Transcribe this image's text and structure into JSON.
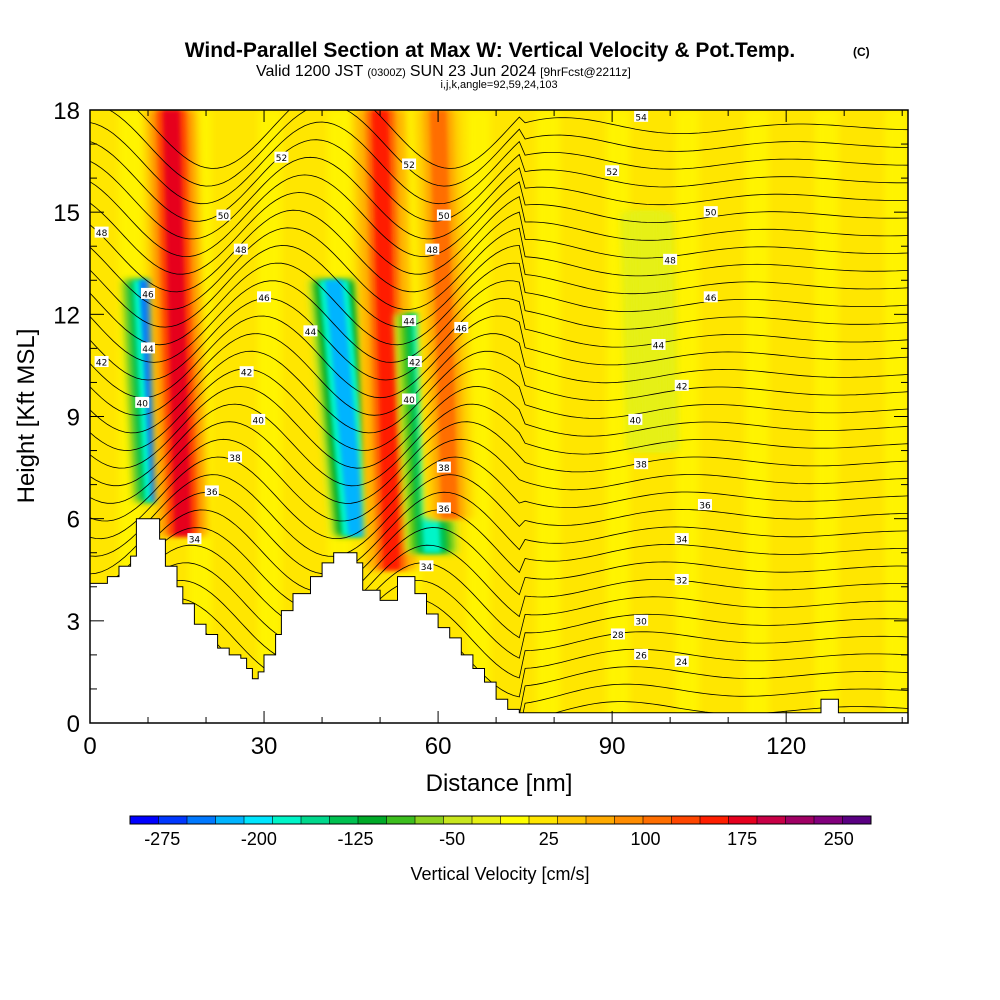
{
  "header": {
    "title": "Wind-Parallel Section at Max W: Vertical Velocity & Pot.Temp.",
    "title_mark": "(C)",
    "valid_prefix": "Valid 1200 JST",
    "valid_utc": "(0300Z)",
    "valid_date": "SUN 23 Jun 2024",
    "forecast": "[9hrFcst@2211z]",
    "section_params": "i,j,k,angle=92,59,24,103"
  },
  "chart_data": {
    "type": "heatmap",
    "xlabel": "Distance [nm]",
    "ylabel": "Height [Kft MSL]",
    "xlim": [
      0,
      141
    ],
    "ylim": [
      0,
      18
    ],
    "x_ticks": [
      0,
      30,
      60,
      90,
      120
    ],
    "y_ticks": [
      0,
      3,
      6,
      9,
      12,
      15,
      18
    ],
    "colorbar": {
      "label": "Vertical Velocity [cm/s]",
      "range": [
        -300,
        275
      ],
      "tick_values": [
        -275,
        -200,
        -125,
        -50,
        25,
        100,
        175,
        250
      ],
      "tick_labels": [
        "-275",
        "-200",
        "-125",
        "-50",
        "25",
        "100",
        "175",
        "250"
      ],
      "colors": [
        "#0000ff",
        "#0037ff",
        "#0078ff",
        "#00b4ff",
        "#00e6ff",
        "#00f5c8",
        "#00d88c",
        "#00c050",
        "#00aa28",
        "#3cbe1e",
        "#8cd21e",
        "#c8e61e",
        "#e6f014",
        "#ffff00",
        "#ffe600",
        "#ffc800",
        "#ffaa00",
        "#ff8c00",
        "#ff6e00",
        "#ff4600",
        "#ff1e00",
        "#e6001e",
        "#c80046",
        "#a00064",
        "#82007d",
        "#5a0082"
      ]
    },
    "terrain_kft": [
      [
        0,
        4.1
      ],
      [
        3,
        4.3
      ],
      [
        5,
        4.6
      ],
      [
        7,
        4.9
      ],
      [
        8,
        6.0
      ],
      [
        11,
        6.0
      ],
      [
        12,
        5.4
      ],
      [
        13,
        4.6
      ],
      [
        15,
        4.0
      ],
      [
        16,
        3.5
      ],
      [
        18,
        2.9
      ],
      [
        20,
        2.6
      ],
      [
        22,
        2.2
      ],
      [
        24,
        2.0
      ],
      [
        26,
        1.9
      ],
      [
        27,
        1.6
      ],
      [
        28,
        1.3
      ],
      [
        29,
        1.5
      ],
      [
        30,
        2.0
      ],
      [
        32,
        2.6
      ],
      [
        33,
        3.3
      ],
      [
        35,
        3.8
      ],
      [
        38,
        4.3
      ],
      [
        40,
        4.7
      ],
      [
        42,
        5.0
      ],
      [
        44,
        5.0
      ],
      [
        46,
        4.7
      ],
      [
        47,
        3.9
      ],
      [
        50,
        3.6
      ],
      [
        52,
        3.6
      ],
      [
        53,
        4.3
      ],
      [
        55,
        4.3
      ],
      [
        56,
        3.8
      ],
      [
        58,
        3.2
      ],
      [
        60,
        2.8
      ],
      [
        62,
        2.5
      ],
      [
        64,
        2.0
      ],
      [
        66,
        1.6
      ],
      [
        68,
        1.2
      ],
      [
        70,
        0.7
      ],
      [
        72,
        0.4
      ],
      [
        74,
        0.3
      ],
      [
        90,
        0.3
      ],
      [
        125,
        0.3
      ],
      [
        126,
        0.7
      ],
      [
        128,
        0.7
      ],
      [
        129,
        0.3
      ],
      [
        141,
        0.3
      ]
    ],
    "series": [
      {
        "name": "Vertical Velocity",
        "units": "cm/s",
        "field": [
          {
            "x_top": 10,
            "x_bottom": 12,
            "z_top": 13,
            "z_bottom": 6.5,
            "value": -250
          },
          {
            "x_top": 14,
            "x_bottom": 16,
            "z_top": 18,
            "z_bottom": 5.5,
            "value": 175
          },
          {
            "x_top": 42,
            "x_bottom": 46,
            "z_top": 13,
            "z_bottom": 5.5,
            "value": -225
          },
          {
            "x_top": 50,
            "x_bottom": 52,
            "z_top": 18,
            "z_bottom": 4.5,
            "value": 150
          },
          {
            "x_top": 57,
            "x_bottom": 59,
            "z_top": 12,
            "z_bottom": 5,
            "value": -175
          },
          {
            "x_top": 60,
            "x_bottom": 62,
            "z_top": 18,
            "z_bottom": 6,
            "value": 100
          },
          {
            "x_top": 96,
            "x_bottom": 97,
            "z_top": 15,
            "z_bottom": 8,
            "value": -25
          }
        ]
      },
      {
        "name": "Pot.Temp.",
        "units": "C",
        "contour_labels": [
          {
            "x": 95,
            "z": 17.8,
            "value": "54"
          },
          {
            "x": 33,
            "z": 16.6,
            "value": "52"
          },
          {
            "x": 55,
            "z": 16.4,
            "value": "52"
          },
          {
            "x": 90,
            "z": 16.2,
            "value": "52"
          },
          {
            "x": 23,
            "z": 14.9,
            "value": "50"
          },
          {
            "x": 61,
            "z": 14.9,
            "value": "50"
          },
          {
            "x": 107,
            "z": 15.0,
            "value": "50"
          },
          {
            "x": 2,
            "z": 14.4,
            "value": "48"
          },
          {
            "x": 26,
            "z": 13.9,
            "value": "48"
          },
          {
            "x": 59,
            "z": 13.9,
            "value": "48"
          },
          {
            "x": 100,
            "z": 13.6,
            "value": "48"
          },
          {
            "x": 10,
            "z": 12.6,
            "value": "46"
          },
          {
            "x": 30,
            "z": 12.5,
            "value": "46"
          },
          {
            "x": 64,
            "z": 11.6,
            "value": "46"
          },
          {
            "x": 107,
            "z": 12.5,
            "value": "46"
          },
          {
            "x": 10,
            "z": 11.0,
            "value": "44"
          },
          {
            "x": 38,
            "z": 11.5,
            "value": "44"
          },
          {
            "x": 55,
            "z": 11.8,
            "value": "44"
          },
          {
            "x": 98,
            "z": 11.1,
            "value": "44"
          },
          {
            "x": 2,
            "z": 10.6,
            "value": "42"
          },
          {
            "x": 27,
            "z": 10.3,
            "value": "42"
          },
          {
            "x": 56,
            "z": 10.6,
            "value": "42"
          },
          {
            "x": 102,
            "z": 9.9,
            "value": "42"
          },
          {
            "x": 9,
            "z": 9.4,
            "value": "40"
          },
          {
            "x": 29,
            "z": 8.9,
            "value": "40"
          },
          {
            "x": 55,
            "z": 9.5,
            "value": "40"
          },
          {
            "x": 94,
            "z": 8.9,
            "value": "40"
          },
          {
            "x": 25,
            "z": 7.8,
            "value": "38"
          },
          {
            "x": 61,
            "z": 7.5,
            "value": "38"
          },
          {
            "x": 95,
            "z": 7.6,
            "value": "38"
          },
          {
            "x": 21,
            "z": 6.8,
            "value": "36"
          },
          {
            "x": 61,
            "z": 6.3,
            "value": "36"
          },
          {
            "x": 106,
            "z": 6.4,
            "value": "36"
          },
          {
            "x": 18,
            "z": 5.4,
            "value": "34"
          },
          {
            "x": 58,
            "z": 4.6,
            "value": "34"
          },
          {
            "x": 102,
            "z": 5.4,
            "value": "34"
          },
          {
            "x": 102,
            "z": 4.2,
            "value": "32"
          },
          {
            "x": 95,
            "z": 3.0,
            "value": "30"
          },
          {
            "x": 91,
            "z": 2.6,
            "value": "28"
          },
          {
            "x": 95,
            "z": 2.0,
            "value": "26"
          },
          {
            "x": 102,
            "z": 1.8,
            "value": "24"
          }
        ]
      }
    ]
  }
}
